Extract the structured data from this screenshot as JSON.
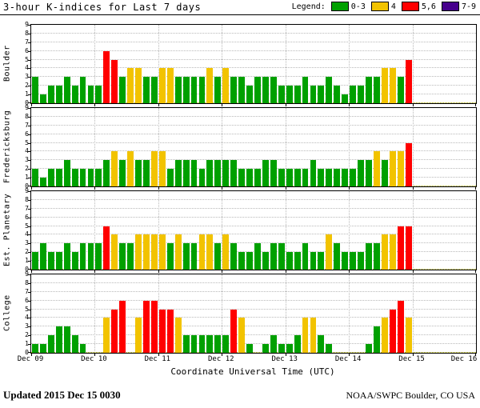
{
  "header": {
    "title": "3-hour K-indices for Last 7 days",
    "legend_label": "Legend:",
    "legend": [
      {
        "label": "0-3",
        "color": "#00a000"
      },
      {
        "label": "4",
        "color": "#f2c300"
      },
      {
        "label": "5,6",
        "color": "#ff0000"
      },
      {
        "label": "7-9",
        "color": "#46008c"
      }
    ]
  },
  "footer": {
    "updated_label": "Updated",
    "updated_value": "2015 Dec 15 0030",
    "credit": "NOAA/SWPC Boulder, CO USA"
  },
  "chart_data": {
    "type": "bar",
    "title": "3-hour K-indices for Last 7 days",
    "xlabel": "Coordinate Universal Time (UTC)",
    "ylabel": "",
    "ylim": [
      0,
      9
    ],
    "y_ticks": [
      0,
      1,
      2,
      3,
      4,
      5,
      6,
      7,
      8,
      9
    ],
    "x_tick_labels": [
      "Dec 09",
      "Dec 10",
      "Dec 11",
      "Dec 12",
      "Dec 13",
      "Dec 14",
      "Dec 15",
      "Dec 16"
    ],
    "days": 7,
    "slots_per_day": 8,
    "bar_interval_hours": 3,
    "grid": true,
    "legend_position": "top-right",
    "color_rules": [
      {
        "range": "0-3",
        "color": "#00a000"
      },
      {
        "range": "4",
        "color": "#f2c300"
      },
      {
        "range": "5,6",
        "color": "#ff0000"
      },
      {
        "range": "7-9",
        "color": "#46008c"
      }
    ],
    "panels": [
      {
        "station": "Boulder",
        "values": [
          3,
          1,
          2,
          2,
          3,
          2,
          3,
          2,
          2,
          6,
          5,
          3,
          4,
          4,
          3,
          3,
          4,
          4,
          3,
          3,
          3,
          3,
          4,
          3,
          4,
          3,
          3,
          2,
          3,
          3,
          3,
          2,
          2,
          2,
          3,
          2,
          2,
          3,
          2,
          1,
          2,
          2,
          3,
          3,
          4,
          4,
          3,
          5
        ]
      },
      {
        "station": "Fredericksburg",
        "values": [
          2,
          1,
          2,
          2,
          3,
          2,
          2,
          2,
          2,
          3,
          4,
          3,
          4,
          3,
          3,
          4,
          4,
          2,
          3,
          3,
          3,
          2,
          3,
          3,
          3,
          3,
          2,
          2,
          2,
          3,
          3,
          2,
          2,
          2,
          2,
          3,
          2,
          2,
          2,
          2,
          2,
          3,
          3,
          4,
          3,
          4,
          4,
          5
        ]
      },
      {
        "station": "Est. Planetary",
        "values": [
          2,
          3,
          2,
          2,
          3,
          2,
          3,
          3,
          3,
          5,
          4,
          3,
          3,
          4,
          4,
          4,
          4,
          3,
          4,
          3,
          3,
          4,
          4,
          3,
          4,
          3,
          2,
          2,
          3,
          2,
          3,
          3,
          2,
          2,
          3,
          2,
          2,
          4,
          3,
          2,
          2,
          2,
          3,
          3,
          4,
          4,
          5,
          5
        ]
      },
      {
        "station": "College",
        "values": [
          1,
          1,
          2,
          3,
          3,
          2,
          1,
          0,
          0,
          4,
          5,
          6,
          0,
          4,
          6,
          6,
          5,
          5,
          4,
          2,
          2,
          2,
          2,
          2,
          2,
          5,
          4,
          1,
          0,
          1,
          2,
          1,
          1,
          2,
          4,
          4,
          2,
          1,
          0,
          0,
          0,
          0,
          1,
          3,
          4,
          5,
          6,
          4
        ]
      }
    ]
  }
}
